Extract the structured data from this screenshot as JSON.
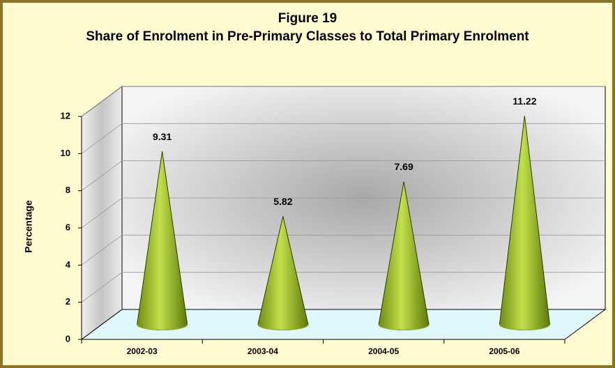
{
  "chart_data": {
    "type": "cone",
    "title": "Figure 19",
    "subtitle": "Share of Enrolment in Pre-Primary Classes to Total Primary Enrolment",
    "y_label": "Percentage",
    "categories": [
      "2002-03",
      "2003-04",
      "2004-05",
      "2005-06"
    ],
    "values": [
      9.31,
      5.82,
      7.69,
      11.22
    ],
    "color": "#9bbf1e",
    "ylim": [
      0,
      12
    ],
    "yticks": [
      0,
      2,
      4,
      6,
      8,
      10,
      12
    ],
    "grid": true
  }
}
